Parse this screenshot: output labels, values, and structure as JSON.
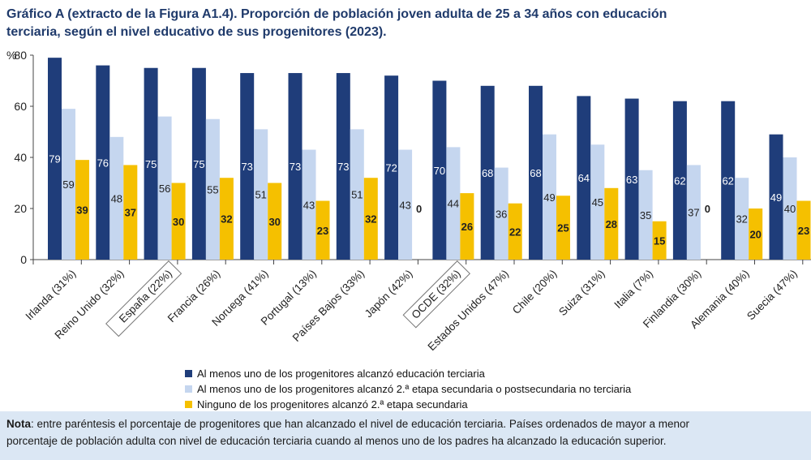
{
  "title_line1": "Gráfico A (extracto de la Figura A1.4). Proporción de población joven adulta de 25 a 34 años con educación",
  "title_line2": "terciaria, según el nivel educativo de sus progenitores (2023).",
  "note_label": "Nota",
  "note_line1": ": entre paréntesis el porcentaje de progenitores que han alcanzado el nivel de educación terciaria. Países ordenados de mayor a menor",
  "note_line2": "porcentaje de población adulta con nivel de educación terciaria cuando al menos uno de los padres ha alcanzado la educación superior.",
  "colors": {
    "series1": "#1f3d7a",
    "series2": "#c5d6ef",
    "series3": "#f5c000",
    "background": "#ffffff",
    "note_background": "#dbe7f4"
  },
  "chart_data": {
    "type": "bar",
    "title": "Proporción de población joven adulta de 25 a 34 años con educación terciaria, según el nivel educativo de sus progenitores (2023)",
    "ylabel": "%",
    "ylim": [
      0,
      80
    ],
    "yticks": [
      0,
      20,
      40,
      60,
      80
    ],
    "categories": [
      "Irlanda (31%)",
      "Reino Unido (32%)",
      "España (22%)",
      "Francia (26%)",
      "Noruega (41%)",
      "Portugal (13%)",
      "Países Bajos (33%)",
      "Japón (42%)",
      "OCDE (32%)",
      "Estados Unidos (47%)",
      "Chile (20%)",
      "Suiza (31%)",
      "Italia (7%)",
      "Finlandia (30%)",
      "Alemania (40%)",
      "Suecia (47%)"
    ],
    "highlighted": [
      "España (22%)",
      "OCDE (32%)"
    ],
    "series": [
      {
        "name": "Al menos uno de los progenitores alcanzó educación terciaria",
        "values": [
          79,
          76,
          75,
          75,
          73,
          73,
          73,
          72,
          70,
          68,
          68,
          64,
          63,
          62,
          62,
          49
        ]
      },
      {
        "name": "Al menos uno de los progenitores alcanzó 2.ª etapa secundaria o postsecundaria no terciaria",
        "values": [
          59,
          48,
          56,
          55,
          51,
          43,
          51,
          43,
          44,
          36,
          49,
          45,
          35,
          37,
          32,
          40
        ]
      },
      {
        "name": "Ninguno de los progenitores alcanzó 2.ª etapa secundaria",
        "values": [
          39,
          37,
          30,
          32,
          30,
          23,
          32,
          0,
          26,
          22,
          25,
          28,
          15,
          0,
          20,
          23
        ]
      }
    ],
    "legend_position": "bottom"
  }
}
